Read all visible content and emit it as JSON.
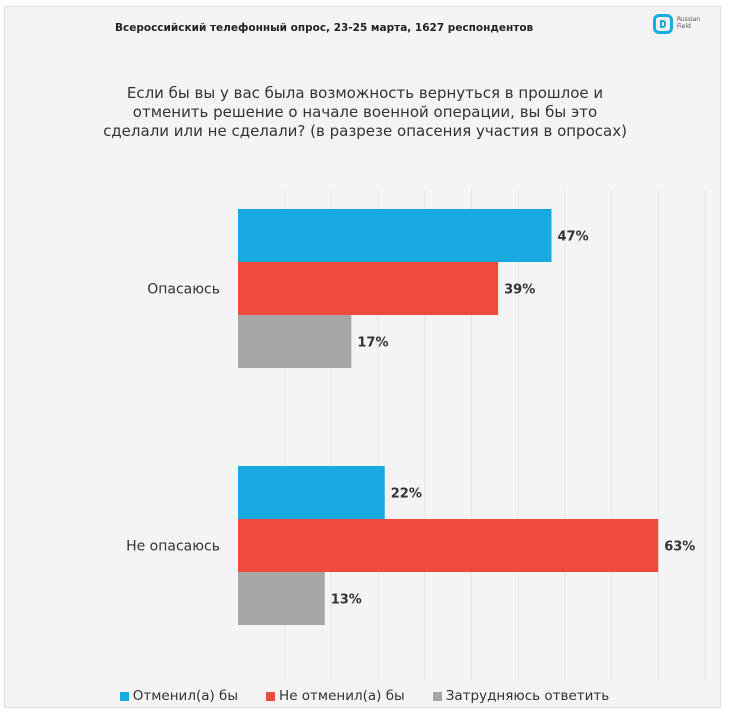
{
  "header": {
    "subtitle": "Всероссийский телефонный опрос, 23-25 марта, 1627 респондентов",
    "logo_text": "Russian\nField",
    "logo_color": "#1aa9e0"
  },
  "question_lines": [
    "Если бы вы у вас была возможность вернуться в прошлое и",
    "отменить решение о начале военной операции, вы бы это",
    "сделали или не сделали? (в разрезе опасения участия в опросах)"
  ],
  "chart_data": {
    "type": "bar",
    "orientation": "horizontal",
    "title": "Если бы вы у вас была возможность вернуться в прошлое и отменить решение о начале военной операции, вы бы это сделали или не сделали? (в разрезе опасения участия в опросах)",
    "subtitle": "Всероссийский телефонный опрос, 23-25 марта, 1627 респондентов",
    "categories": [
      "Опасаюсь",
      "Не опасаюсь"
    ],
    "series": [
      {
        "name": "Отменил(а) бы",
        "values": [
          47,
          22
        ],
        "labels": [
          "47%",
          "22%"
        ],
        "color": "#17a9e0"
      },
      {
        "name": "Не отменил(а) бы",
        "values": [
          39,
          63
        ],
        "labels": [
          "39%",
          "63%"
        ],
        "color": "#ef4a3c"
      },
      {
        "name": "Затрудняюсь ответить",
        "values": [
          17,
          13
        ],
        "labels": [
          "17%",
          "13%"
        ],
        "color": "#a6a6a6"
      }
    ],
    "value_unit": "%",
    "xlim": [
      0,
      70
    ],
    "grid": true,
    "legend_position": "bottom"
  }
}
